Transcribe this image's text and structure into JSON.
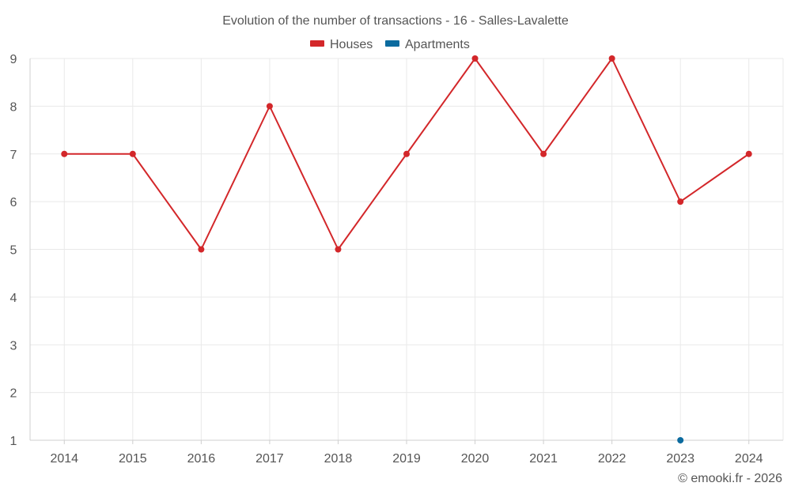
{
  "chart_data": {
    "type": "line",
    "title": "Evolution of the number of transactions - 16 - Salles-Lavalette",
    "categories": [
      "2014",
      "2015",
      "2016",
      "2017",
      "2018",
      "2019",
      "2020",
      "2021",
      "2022",
      "2023",
      "2024"
    ],
    "series": [
      {
        "name": "Houses",
        "color": "#d3272a",
        "values": [
          7,
          7,
          5,
          8,
          5,
          7,
          9,
          7,
          9,
          6,
          7
        ]
      },
      {
        "name": "Apartments",
        "color": "#0b6b9f",
        "values": [
          null,
          null,
          null,
          null,
          null,
          null,
          null,
          null,
          null,
          1,
          null
        ]
      }
    ],
    "ylim": [
      1,
      9
    ],
    "yticks": [
      "1",
      "2",
      "3",
      "4",
      "5",
      "6",
      "7",
      "8",
      "9"
    ],
    "grid": true,
    "legend_position": "top-center",
    "credit": "© emooki.fr - 2026"
  }
}
